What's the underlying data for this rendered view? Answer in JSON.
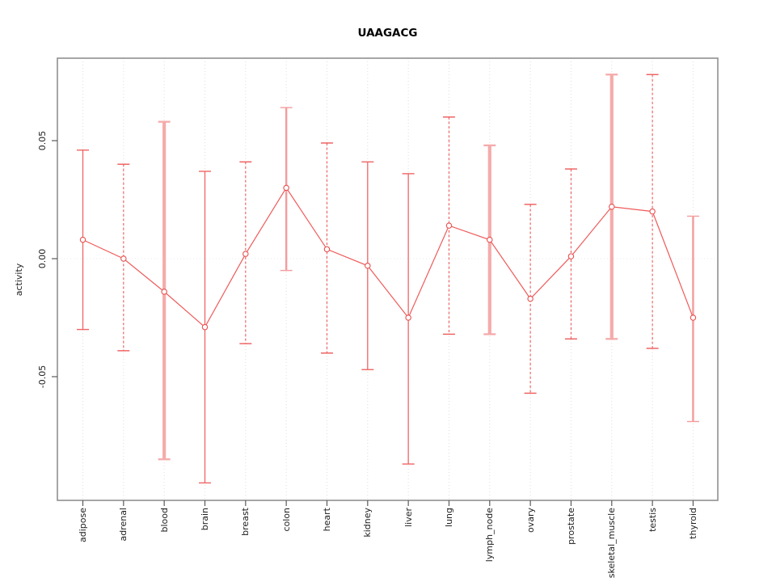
{
  "chart_data": {
    "type": "line",
    "error_bars": true,
    "title": "UAAGACG",
    "ylabel": "activity",
    "xlabel": "",
    "categories": [
      "adipose",
      "adrenal",
      "blood",
      "brain",
      "breast",
      "colon",
      "heart",
      "kidney",
      "liver",
      "lung",
      "lymph_node",
      "ovary",
      "prostate",
      "skeletal_muscle",
      "testis",
      "thyroid"
    ],
    "series": [
      {
        "name": "activity",
        "values": [
          0.008,
          0.0,
          -0.014,
          -0.029,
          0.002,
          0.03,
          0.004,
          -0.003,
          -0.025,
          0.014,
          0.008,
          -0.017,
          0.001,
          0.022,
          0.02,
          -0.025
        ]
      },
      {
        "name": "error_upper",
        "values": [
          0.046,
          0.04,
          0.058,
          0.037,
          0.041,
          0.064,
          0.049,
          0.041,
          0.036,
          0.06,
          0.048,
          0.023,
          0.038,
          0.078,
          0.078,
          0.018
        ]
      },
      {
        "name": "error_lower",
        "values": [
          -0.03,
          -0.039,
          -0.085,
          -0.095,
          -0.036,
          -0.005,
          -0.04,
          -0.047,
          -0.087,
          -0.032,
          -0.032,
          -0.057,
          -0.034,
          -0.034,
          -0.038,
          -0.069
        ]
      }
    ],
    "bar_styles": [
      "thin",
      "dashed",
      "thick",
      "thin",
      "dashed",
      "medium",
      "dashed",
      "thin",
      "thin",
      "dashed",
      "thick",
      "dashed",
      "dashed",
      "thick",
      "dashed",
      "medium"
    ],
    "yticks": {
      "values": [
        0.05,
        0.0,
        -0.05
      ],
      "labels": [
        "0.05",
        "0.00",
        "-0.05"
      ]
    },
    "ylim": [
      -0.102,
      0.085
    ],
    "grid": "dotted vertical gridline per category; dotted horizontal line at 0",
    "legend": "none",
    "colors": {
      "point": "#e85050",
      "line": "#ef5b5b",
      "bar_thin": "#ef6565",
      "bar_dashed": "#ee5a5a",
      "bar_medium": "#f49c9c",
      "bar_thick": "#f5abab",
      "grid": "#dedede",
      "zero_line": "#e8e8e8",
      "frame": "#8f8f8f",
      "tick": "#5a5a5a",
      "text": "#1c1c1c"
    }
  }
}
